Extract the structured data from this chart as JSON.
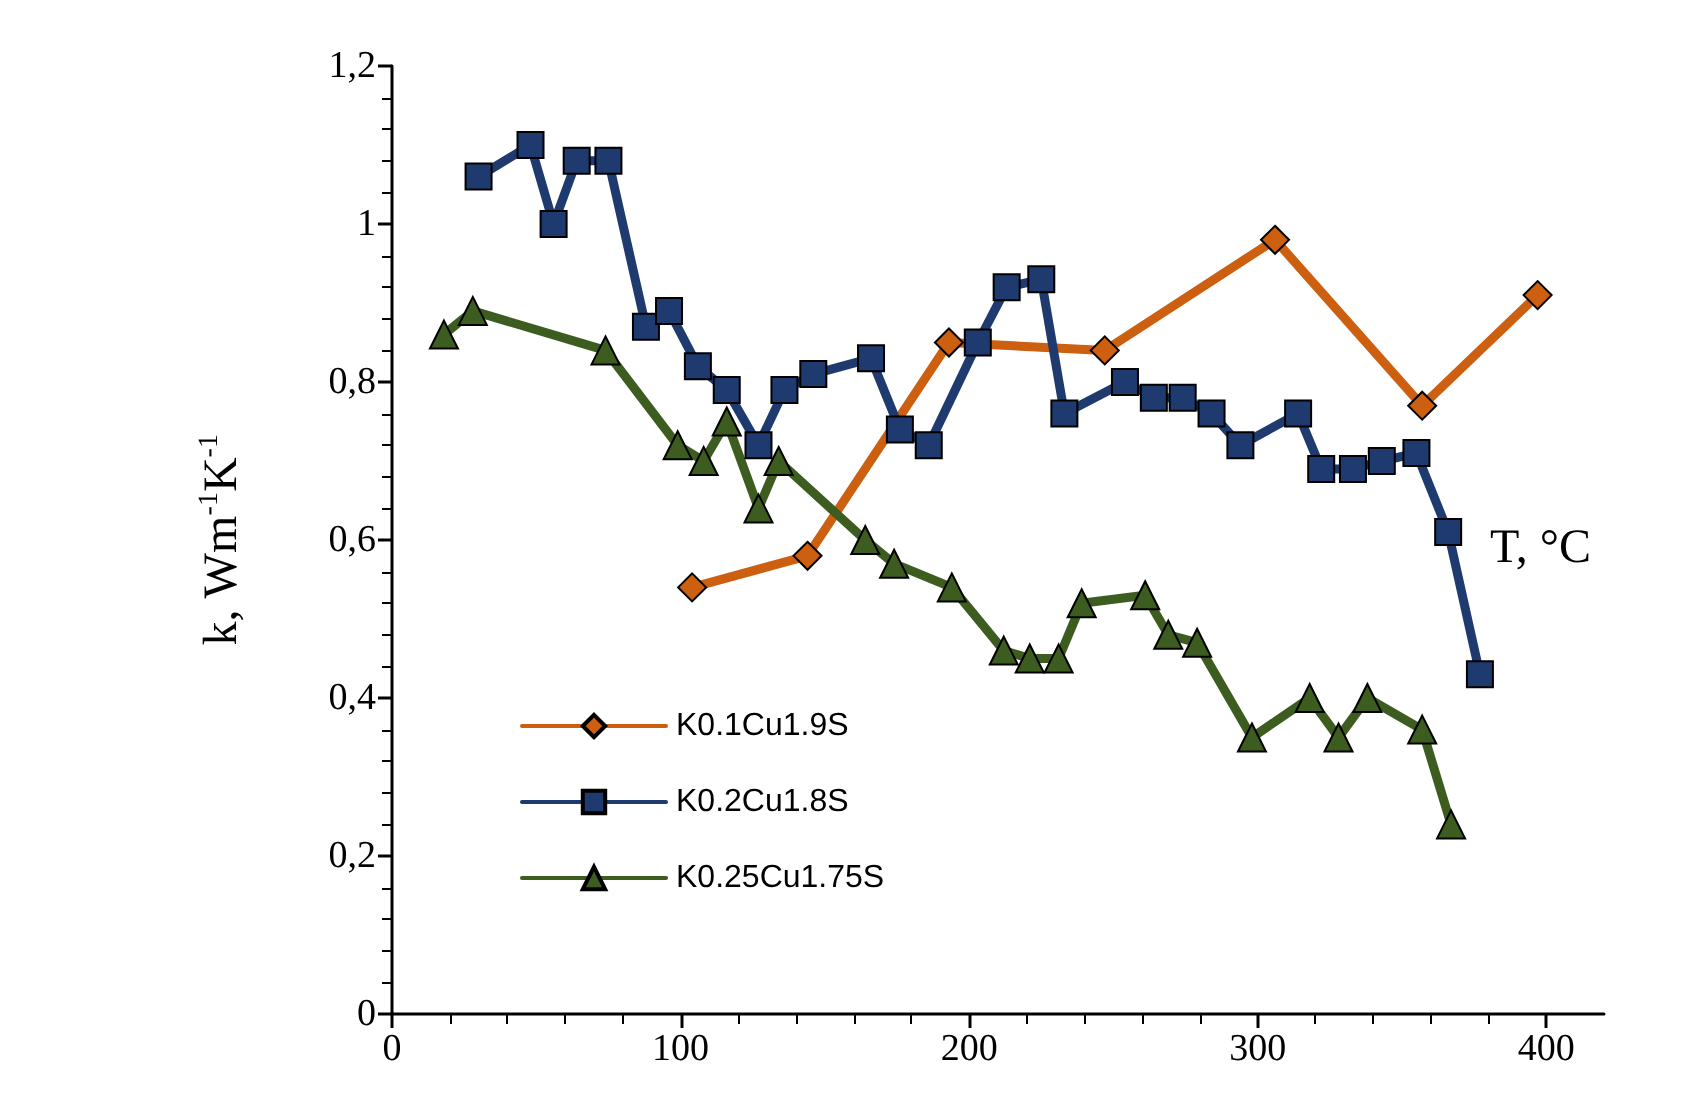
{
  "chart_data": {
    "type": "line",
    "xlabel": "T, °C",
    "ylabel": "k, Wm$^{-1}$K$^{-1}$",
    "xlim": [
      0,
      420
    ],
    "xticks": [
      0,
      100,
      200,
      300,
      400
    ],
    "ylim": [
      0,
      1.2
    ],
    "yticks": [
      0,
      {
        "value": 0.2,
        "label": "0,2"
      },
      {
        "value": 0.4,
        "label": "0,4"
      },
      {
        "value": 0.6,
        "label": "0,6"
      },
      {
        "value": 0.8,
        "label": "0,8"
      },
      1,
      {
        "value": 1.2,
        "label": "1,2"
      }
    ],
    "grid": false,
    "legend": "bottom left",
    "line_style": "solid",
    "series": [
      {
        "name": "K0.1Cu1.9S",
        "color": "#cc5f10",
        "marker": "diamond",
        "x": [
          104,
          144,
          193,
          247,
          306,
          357,
          397
        ],
        "values": [
          0.54,
          0.58,
          0.85,
          0.84,
          0.98,
          0.77,
          0.91
        ]
      },
      {
        "name": "K0.2Cu1.8S",
        "color": "#1f3a6e",
        "marker": "square",
        "x": [
          30,
          48,
          56,
          64,
          75,
          88,
          96,
          106,
          116,
          127,
          136,
          146,
          166,
          176,
          186,
          203,
          213,
          225,
          233,
          254,
          264,
          274,
          284,
          294,
          314,
          322,
          333,
          343,
          355,
          366,
          377
        ],
        "values": [
          1.06,
          1.1,
          1.0,
          1.08,
          1.08,
          0.87,
          0.89,
          0.82,
          0.79,
          0.72,
          0.79,
          0.81,
          0.83,
          0.74,
          0.72,
          0.85,
          0.92,
          0.93,
          0.76,
          0.8,
          0.78,
          0.78,
          0.76,
          0.72,
          0.76,
          0.69,
          0.69,
          0.7,
          0.71,
          0.61,
          0.43
        ]
      },
      {
        "name": "K0.25Cu1.75S",
        "color": "#3d5c1f",
        "marker": "triangle",
        "x": [
          18,
          28,
          74,
          99,
          108,
          116,
          127,
          134,
          164,
          174,
          194,
          212,
          221,
          231,
          239,
          261,
          269,
          279,
          298,
          318,
          328,
          338,
          357,
          367
        ],
        "values": [
          0.86,
          0.89,
          0.84,
          0.72,
          0.7,
          0.75,
          0.64,
          0.7,
          0.6,
          0.57,
          0.54,
          0.46,
          0.45,
          0.45,
          0.52,
          0.53,
          0.48,
          0.47,
          0.35,
          0.4,
          0.35,
          0.4,
          0.36,
          0.24
        ]
      }
    ]
  }
}
